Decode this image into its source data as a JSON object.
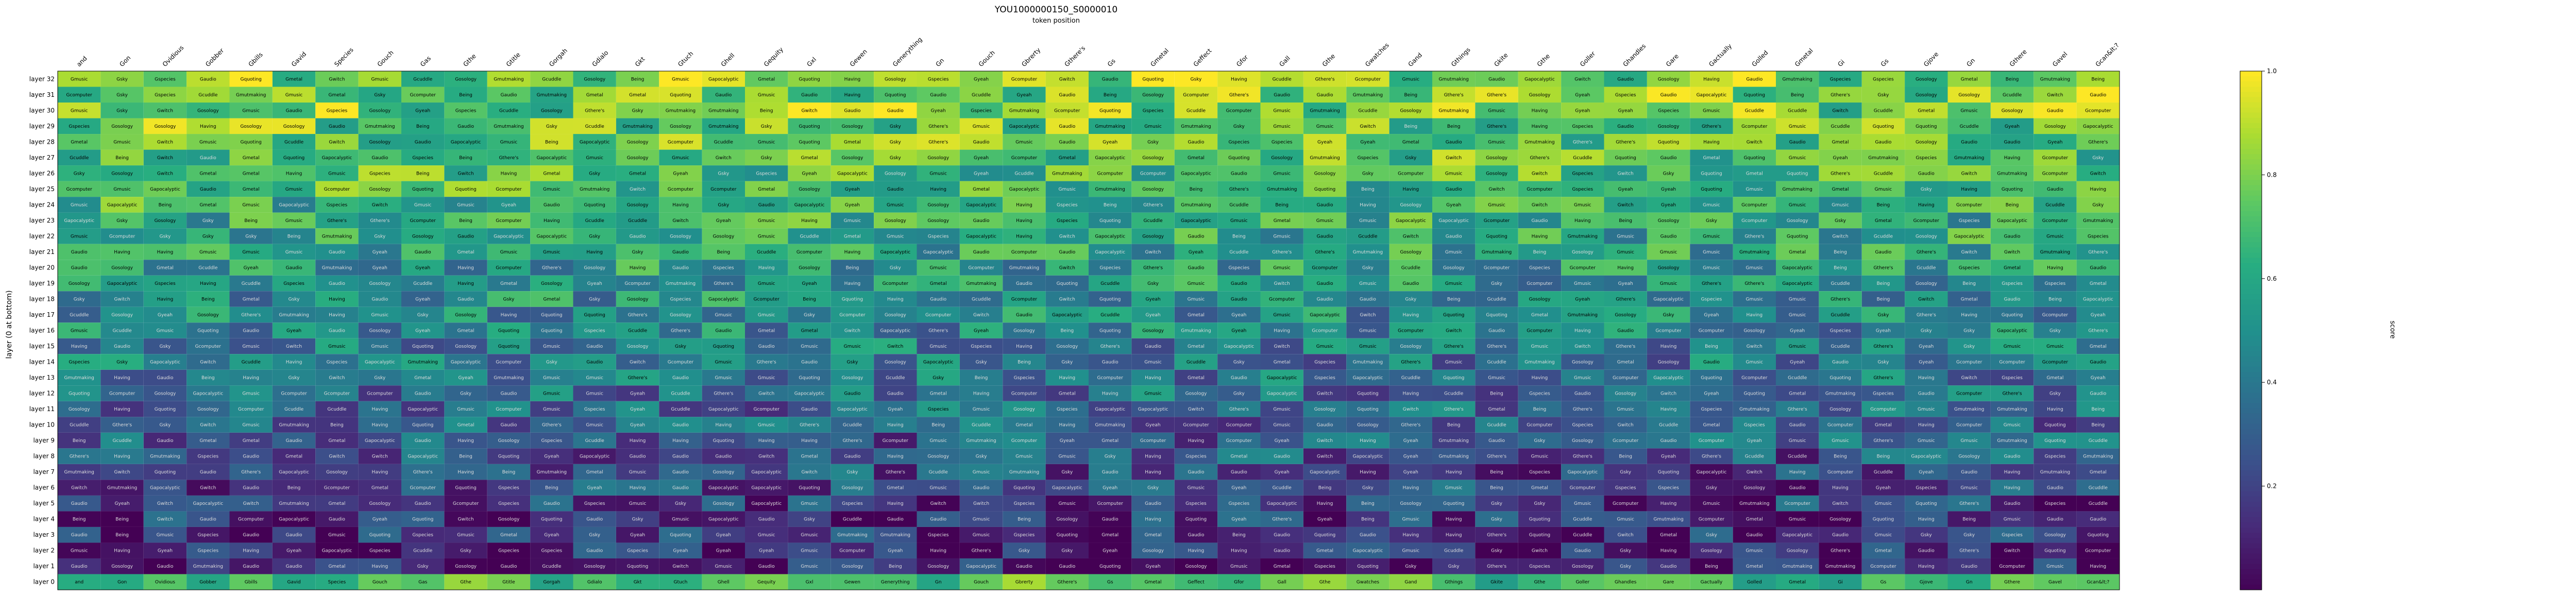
{
  "chart_data": {
    "type": "heatmap",
    "title": "YOU1000000150_S0000010",
    "subtitle": "token position",
    "ylabel": "layer (0 at bottom)",
    "colorbar_label": "score",
    "colormap": "viridis",
    "vmin": 0.0,
    "vmax": 1.0,
    "colorbar_ticks": [
      "0.2",
      "0.4",
      "0.6",
      "0.8",
      "1.0"
    ],
    "colorbar_tick_values": [
      0.2,
      0.4,
      0.6,
      0.8,
      1.0
    ],
    "x_tokens": [
      "and",
      "Gon",
      "Ovidious",
      "Gobber",
      "Gbills",
      "Gavid",
      "Species",
      "Gouch",
      "Gas",
      "Gthe",
      "Gtitle",
      "Gorgah",
      "Gdialo",
      "Gkt",
      "Gtuch",
      "Ghell",
      "Gequity",
      "Gxl",
      "Gewen",
      "Generything",
      "Gn",
      "Gouch",
      "Gbrerty",
      "Gthere's",
      "Gs",
      "Gmetal",
      "Geffect",
      "Gfor",
      "Gall",
      "Gthe",
      "Gwatches",
      "Gand",
      "Gthings",
      "Gkite",
      "Gthe",
      "Goller",
      "Ghandles",
      "Gare",
      "Gactually",
      "Golled",
      "Gmetal",
      "Gi",
      "Gs",
      "Gjove",
      "Gn",
      "Gthere",
      "Gavel",
      "Gcan&lt;?"
    ],
    "y_layers": [
      "layer 32",
      "layer 31",
      "layer 30",
      "layer 29",
      "layer 28",
      "layer 27",
      "layer 26",
      "layer 25",
      "layer 24",
      "layer 23",
      "layer 22",
      "layer 21",
      "layer 20",
      "layer 19",
      "layer 18",
      "layer 17",
      "layer 16",
      "layer 15",
      "layer 14",
      "layer 13",
      "layer 12",
      "layer 11",
      "layer 10",
      "layer 9",
      "layer 8",
      "layer 7",
      "layer 6",
      "layer 5",
      "layer 4",
      "layer 3",
      "layer 2",
      "layer 1",
      "layer 0"
    ],
    "cell_words": [
      "Being",
      "Gmusic",
      "Gmusic",
      "Gaudio",
      "Gosology",
      "Having",
      "Gquoting",
      "Gwitch",
      "Gaudio",
      "Gthere's",
      "Gmutmaking",
      "Gcomputer",
      "Gspecies",
      "Gcuddle",
      "Gmetal",
      "Gapocalyptic",
      "Gsky",
      "Gyeah"
    ],
    "seed": 10
  }
}
